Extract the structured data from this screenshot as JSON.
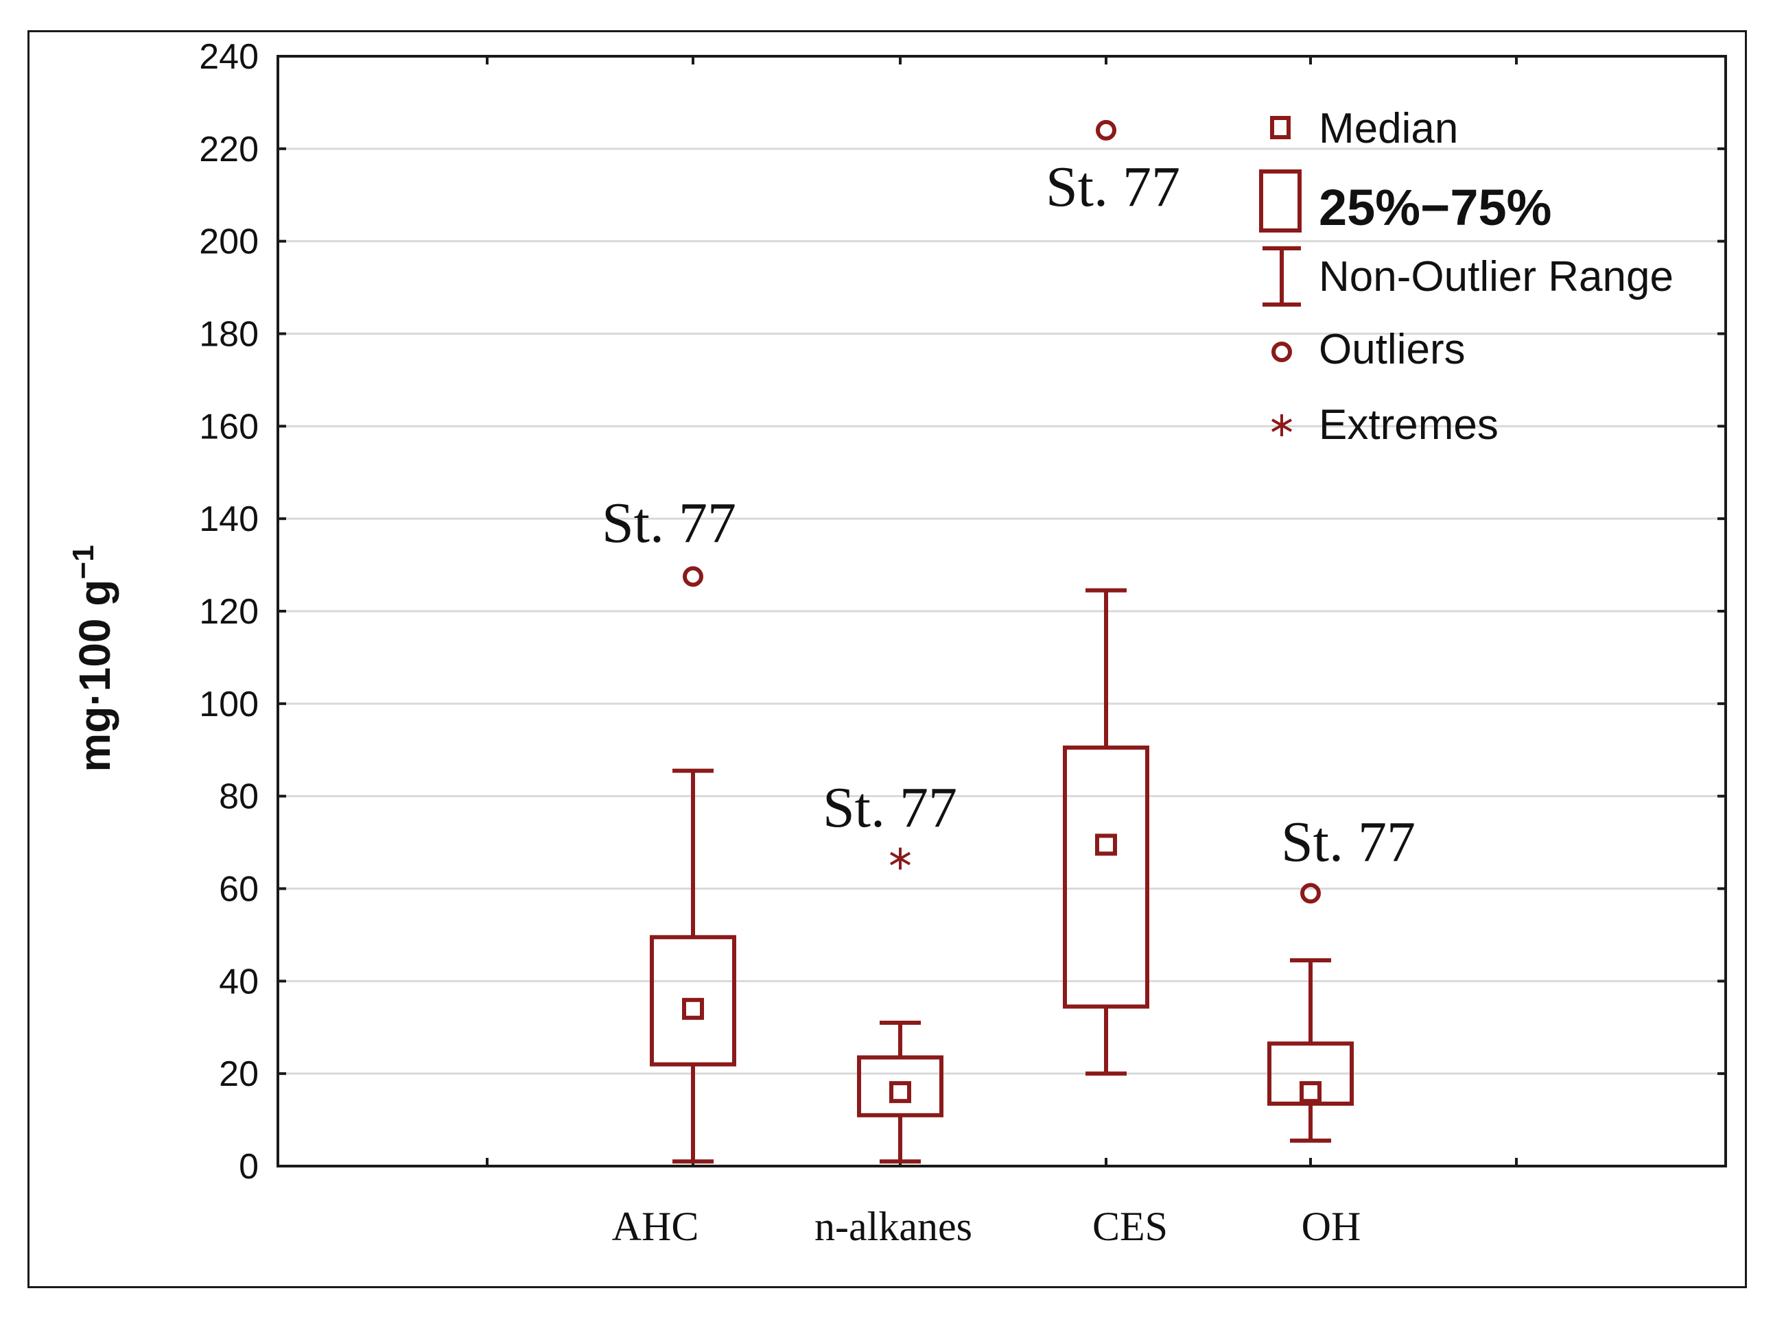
{
  "chart_data": {
    "type": "box",
    "ylabel": "mg·100 g",
    "ylabel_sup": "−1",
    "ylim": [
      0,
      240
    ],
    "yticks": [
      0,
      20,
      40,
      60,
      80,
      100,
      120,
      140,
      160,
      180,
      200,
      220,
      240
    ],
    "grid": true,
    "categories": [
      "AHC",
      "n-alkanes",
      "CES",
      "OH"
    ],
    "boxes": [
      {
        "category": "AHC",
        "median": 34,
        "q1": 22,
        "q3": 49.5,
        "whisker_low": 1,
        "whisker_high": 85.5
      },
      {
        "category": "n-alkanes",
        "median": 16,
        "q1": 11,
        "q3": 23.5,
        "whisker_low": 1,
        "whisker_high": 31
      },
      {
        "category": "CES",
        "median": 69.5,
        "q1": 34.5,
        "q3": 90.5,
        "whisker_low": 20,
        "whisker_high": 124.5
      },
      {
        "category": "OH",
        "median": 16,
        "q1": 13.5,
        "q3": 26.5,
        "whisker_low": 5.5,
        "whisker_high": 44.5
      }
    ],
    "points": [
      {
        "category": "AHC",
        "kind": "outlier",
        "value": 127.5,
        "label": "St. 77"
      },
      {
        "category": "n-alkanes",
        "kind": "extreme",
        "value": 66.5,
        "label": "St. 77"
      },
      {
        "category": "CES",
        "kind": "outlier",
        "value": 224,
        "label": "St. 77"
      },
      {
        "category": "OH",
        "kind": "outlier",
        "value": 59,
        "label": "St. 77"
      }
    ],
    "legend": {
      "position": "top-right",
      "median": "Median",
      "box": "25%−75%",
      "range": "Non-Outlier Range",
      "outliers": "Outliers",
      "extremes": "Extremes"
    }
  },
  "colors": {
    "series": "#8b1a1a",
    "grid": "#d9d9d9",
    "axis": "#1a1a1a"
  }
}
